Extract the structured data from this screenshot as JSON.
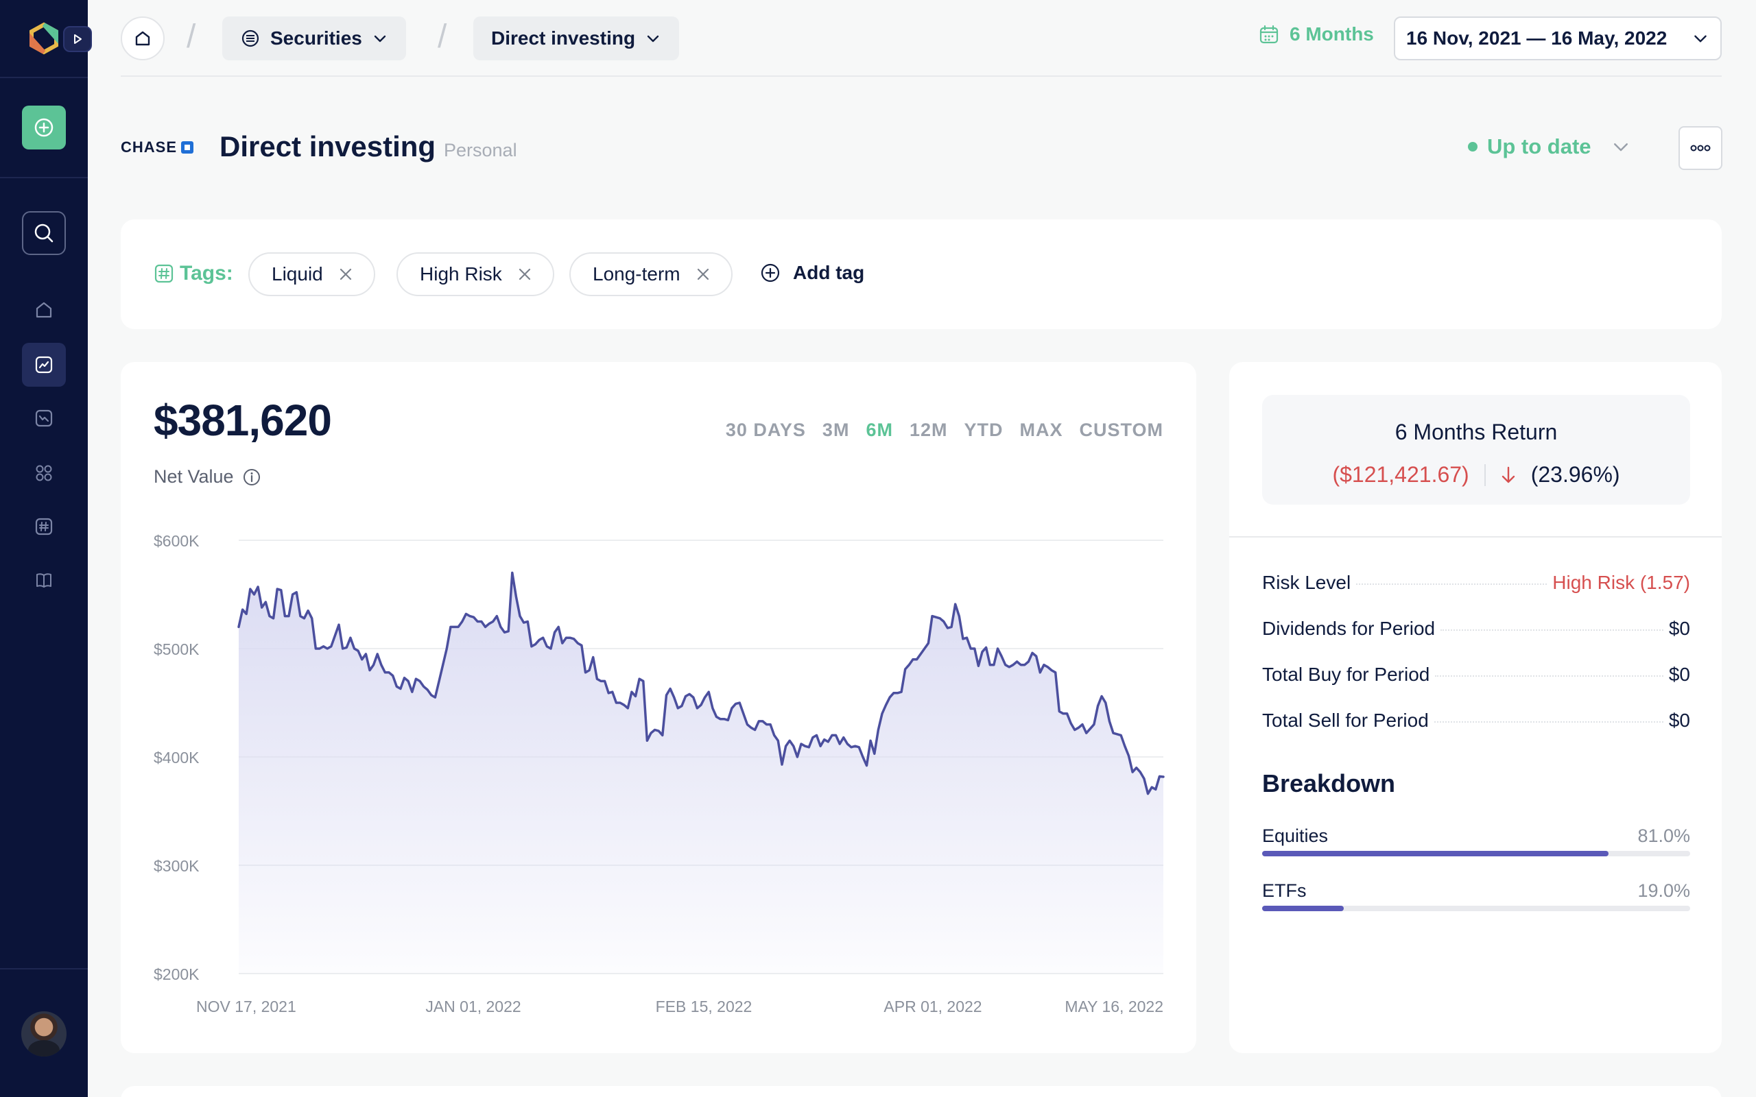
{
  "sidebar": {
    "nav": [
      "home",
      "portfolio",
      "trends",
      "apps",
      "tags",
      "book"
    ]
  },
  "breadcrumb": {
    "items": [
      "Securities",
      "Direct investing"
    ]
  },
  "period": {
    "label": "6 Months",
    "date_range": "16 Nov, 2021 — 16 May, 2022"
  },
  "account": {
    "institution": "CHASE",
    "title": "Direct investing",
    "subtitle": "Personal",
    "status": "Up to date"
  },
  "tags": {
    "label": "Tags:",
    "items": [
      "Liquid",
      "High Risk",
      "Long-term"
    ],
    "add_label": "Add tag"
  },
  "summary": {
    "net_value": "$381,620",
    "net_label": "Net Value",
    "ranges": [
      "30 DAYS",
      "3M",
      "6M",
      "12M",
      "YTD",
      "MAX",
      "CUSTOM"
    ],
    "active_range": "6M"
  },
  "chart_data": {
    "type": "area",
    "title": "",
    "xlabel": "",
    "ylabel": "",
    "ylim": [
      200000,
      600000
    ],
    "y_ticks": [
      "$600K",
      "$500K",
      "$400K",
      "$300K",
      "$200K"
    ],
    "y_tick_values": [
      600000,
      500000,
      400000,
      300000,
      200000
    ],
    "x_ticks": [
      "NOV 17, 2021",
      "JAN 01, 2022",
      "FEB 15, 2022",
      "APR 01, 2022",
      "MAY 16, 2022"
    ],
    "grid": true,
    "line_color": "#4b4f9e",
    "fill_color": "#d9daf2",
    "values": [
      520000,
      536000,
      532000,
      555000,
      550000,
      557000,
      538000,
      543000,
      530000,
      528000,
      555000,
      554000,
      530000,
      530000,
      550000,
      552000,
      530000,
      528000,
      535000,
      528000,
      500000,
      500000,
      502000,
      500000,
      502000,
      512000,
      522000,
      500000,
      501000,
      510000,
      500000,
      498000,
      490000,
      495000,
      480000,
      485000,
      495000,
      485000,
      478000,
      478000,
      475000,
      465000,
      463000,
      473000,
      470000,
      460000,
      472000,
      470000,
      465000,
      462000,
      457000,
      455000,
      470000,
      485000,
      500000,
      520000,
      520000,
      520000,
      525000,
      532000,
      530000,
      529000,
      525000,
      525000,
      520000,
      523000,
      525000,
      530000,
      520000,
      515000,
      516000,
      570000,
      548000,
      530000,
      524000,
      525000,
      502000,
      504000,
      508000,
      510000,
      502000,
      500000,
      515000,
      520000,
      505000,
      510000,
      510000,
      509000,
      505000,
      503000,
      478000,
      480000,
      492000,
      472000,
      470000,
      470000,
      459000,
      460000,
      450000,
      450000,
      448000,
      445000,
      460000,
      456000,
      472000,
      470000,
      415000,
      422000,
      425000,
      424000,
      420000,
      457000,
      463000,
      455000,
      445000,
      447000,
      456000,
      458000,
      455000,
      445000,
      448000,
      455000,
      460000,
      445000,
      437000,
      435000,
      435000,
      434000,
      445000,
      449000,
      450000,
      440000,
      430000,
      427000,
      425000,
      433000,
      433000,
      430000,
      430000,
      420000,
      415000,
      393000,
      410000,
      415000,
      410000,
      400000,
      412000,
      410000,
      409000,
      418000,
      420000,
      410000,
      416000,
      414000,
      420000,
      420000,
      412000,
      418000,
      412000,
      409000,
      410000,
      409000,
      400000,
      392000,
      415000,
      403000,
      425000,
      440000,
      448000,
      455000,
      459000,
      459000,
      460000,
      481000,
      485000,
      490000,
      490000,
      495000,
      500000,
      505000,
      530000,
      529000,
      528000,
      525000,
      519000,
      520000,
      541000,
      530000,
      509000,
      510000,
      500000,
      500000,
      484000,
      497000,
      501000,
      485000,
      485000,
      500000,
      493000,
      485000,
      483000,
      485000,
      488000,
      485000,
      485000,
      488000,
      496000,
      493000,
      478000,
      485000,
      483000,
      480000,
      478000,
      442000,
      440000,
      440000,
      431000,
      425000,
      427000,
      430000,
      422000,
      426000,
      430000,
      447000,
      456000,
      450000,
      433000,
      422000,
      421000,
      420000,
      410000,
      401000,
      386000,
      390000,
      386000,
      380000,
      366000,
      372000,
      370000,
      382000,
      381620
    ]
  },
  "stats": {
    "return_title": "6 Months Return",
    "return_amount": "($121,421.67)",
    "return_pct": "(23.96%)",
    "rows": [
      {
        "label": "Risk Level",
        "value": "High Risk (1.57)"
      },
      {
        "label": "Dividends for Period",
        "value": "$0"
      },
      {
        "label": "Total Buy for Period",
        "value": "$0"
      },
      {
        "label": "Total Sell for Period",
        "value": "$0"
      }
    ],
    "breakdown_title": "Breakdown",
    "breakdown": [
      {
        "label": "Equities",
        "pct": "81.0%",
        "fraction": 0.81
      },
      {
        "label": "ETFs",
        "pct": "19.0%",
        "fraction": 0.19
      }
    ]
  }
}
